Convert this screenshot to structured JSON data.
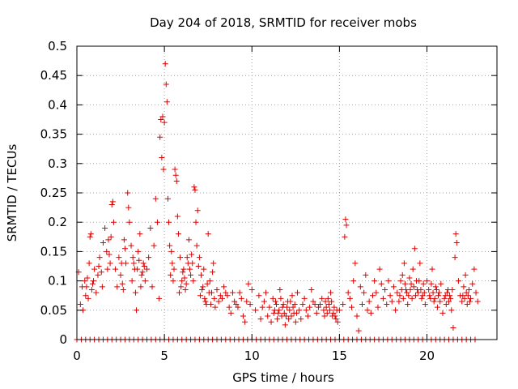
{
  "chart_data": {
    "type": "scatter",
    "title": "Day 204 of 2018, SRMTID for receiver mobs",
    "xlabel": "GPS time / hours",
    "ylabel": "SRMTID / TECUs",
    "xlim": [
      0,
      24
    ],
    "ylim": [
      0,
      0.5
    ],
    "grid": true,
    "marker": "+",
    "color": "#e00000",
    "x_ticks": [
      {
        "value": 0,
        "label": "0"
      },
      {
        "value": 5,
        "label": "5"
      },
      {
        "value": 10,
        "label": "10"
      },
      {
        "value": 15,
        "label": "15"
      },
      {
        "value": 20,
        "label": "20"
      }
    ],
    "y_ticks": [
      {
        "value": 0,
        "label": "0"
      },
      {
        "value": 0.05,
        "label": "0.05"
      },
      {
        "value": 0.1,
        "label": "0.1"
      },
      {
        "value": 0.15,
        "label": "0.15"
      },
      {
        "value": 0.2,
        "label": "0.2"
      },
      {
        "value": 0.25,
        "label": "0.25"
      },
      {
        "value": 0.3,
        "label": "0.3"
      },
      {
        "value": 0.35,
        "label": "0.35"
      },
      {
        "value": 0.4,
        "label": "0.4"
      },
      {
        "value": 0.45,
        "label": "0.45"
      },
      {
        "value": 0.5,
        "label": "0.5"
      }
    ],
    "points": [
      [
        0.1,
        0.115
      ],
      [
        0.2,
        0.06
      ],
      [
        0.3,
        0.09
      ],
      [
        0.35,
        0.05
      ],
      [
        0.45,
        0.1
      ],
      [
        0.5,
        0.075
      ],
      [
        0.6,
        0.105
      ],
      [
        0.7,
        0.13
      ],
      [
        0.75,
        0.175
      ],
      [
        0.8,
        0.18
      ],
      [
        0.9,
        0.095
      ],
      [
        1.0,
        0.12
      ],
      [
        1.1,
        0.08
      ],
      [
        1.2,
        0.11
      ],
      [
        1.3,
        0.14
      ],
      [
        1.4,
        0.115
      ],
      [
        1.5,
        0.165
      ],
      [
        1.6,
        0.19
      ],
      [
        1.7,
        0.15
      ],
      [
        1.8,
        0.17
      ],
      [
        1.9,
        0.13
      ],
      [
        2.0,
        0.23
      ],
      [
        2.05,
        0.235
      ],
      [
        2.1,
        0.2
      ],
      [
        2.2,
        0.12
      ],
      [
        2.3,
        0.09
      ],
      [
        2.4,
        0.14
      ],
      [
        2.5,
        0.11
      ],
      [
        2.6,
        0.095
      ],
      [
        2.7,
        0.17
      ],
      [
        2.8,
        0.13
      ],
      [
        2.9,
        0.25
      ],
      [
        2.95,
        0.225
      ],
      [
        3.0,
        0.2
      ],
      [
        3.1,
        0.16
      ],
      [
        3.2,
        0.14
      ],
      [
        3.3,
        0.12
      ],
      [
        3.35,
        0.08
      ],
      [
        3.4,
        0.05
      ],
      [
        3.5,
        0.15
      ],
      [
        3.6,
        0.18
      ],
      [
        3.7,
        0.11
      ],
      [
        3.8,
        0.13
      ],
      [
        3.9,
        0.1
      ],
      [
        4.0,
        0.12
      ],
      [
        4.1,
        0.14
      ],
      [
        4.2,
        0.19
      ],
      [
        4.3,
        0.09
      ],
      [
        4.4,
        0.16
      ],
      [
        4.5,
        0.24
      ],
      [
        4.6,
        0.2
      ],
      [
        4.7,
        0.07
      ],
      [
        4.75,
        0.345
      ],
      [
        4.8,
        0.375
      ],
      [
        4.85,
        0.31
      ],
      [
        4.9,
        0.38
      ],
      [
        4.95,
        0.29
      ],
      [
        5.0,
        0.37
      ],
      [
        5.05,
        0.47
      ],
      [
        5.1,
        0.435
      ],
      [
        5.15,
        0.405
      ],
      [
        5.2,
        0.24
      ],
      [
        5.25,
        0.2
      ],
      [
        5.3,
        0.16
      ],
      [
        5.35,
        0.11
      ],
      [
        5.4,
        0.15
      ],
      [
        5.5,
        0.1
      ],
      [
        5.6,
        0.29
      ],
      [
        5.65,
        0.28
      ],
      [
        5.7,
        0.27
      ],
      [
        5.75,
        0.21
      ],
      [
        5.8,
        0.18
      ],
      [
        5.9,
        0.14
      ],
      [
        6.0,
        0.1
      ],
      [
        6.1,
        0.12
      ],
      [
        6.2,
        0.085
      ],
      [
        6.3,
        0.14
      ],
      [
        6.4,
        0.17
      ],
      [
        6.5,
        0.11
      ],
      [
        6.6,
        0.13
      ],
      [
        6.7,
        0.26
      ],
      [
        6.75,
        0.255
      ],
      [
        6.8,
        0.2
      ],
      [
        6.9,
        0.22
      ],
      [
        7.0,
        0.14
      ],
      [
        7.1,
        0.11
      ],
      [
        7.2,
        0.09
      ],
      [
        7.3,
        0.07
      ],
      [
        7.4,
        0.06
      ],
      [
        7.5,
        0.18
      ],
      [
        7.6,
        0.1
      ],
      [
        7.7,
        0.08
      ],
      [
        7.8,
        0.13
      ],
      [
        7.9,
        0.055
      ],
      [
        8.0,
        0.085
      ],
      [
        8.1,
        0.065
      ],
      [
        8.2,
        0.075
      ],
      [
        8.3,
        0.07
      ],
      [
        8.4,
        0.09
      ],
      [
        8.5,
        0.08
      ],
      [
        8.6,
        0.075
      ],
      [
        8.7,
        0.055
      ],
      [
        8.8,
        0.045
      ],
      [
        8.9,
        0.08
      ],
      [
        9.0,
        0.065
      ],
      [
        9.1,
        0.06
      ],
      [
        9.2,
        0.055
      ],
      [
        9.3,
        0.08
      ],
      [
        9.4,
        0.07
      ],
      [
        9.5,
        0.04
      ],
      [
        9.6,
        0.03
      ],
      [
        9.7,
        0.065
      ],
      [
        9.8,
        0.095
      ],
      [
        9.9,
        0.06
      ],
      [
        10.0,
        0.085
      ],
      [
        10.2,
        0.05
      ],
      [
        10.4,
        0.075
      ],
      [
        10.5,
        0.035
      ],
      [
        10.6,
        0.055
      ],
      [
        10.7,
        0.065
      ],
      [
        10.8,
        0.08
      ],
      [
        10.9,
        0.04
      ],
      [
        11.0,
        0.055
      ],
      [
        11.1,
        0.03
      ],
      [
        11.2,
        0.07
      ],
      [
        11.3,
        0.05
      ],
      [
        11.4,
        0.06
      ],
      [
        11.5,
        0.045
      ],
      [
        11.6,
        0.085
      ],
      [
        11.7,
        0.04
      ],
      [
        11.8,
        0.06
      ],
      [
        11.9,
        0.025
      ],
      [
        12.0,
        0.055
      ],
      [
        12.1,
        0.035
      ],
      [
        12.2,
        0.065
      ],
      [
        12.3,
        0.075
      ],
      [
        12.4,
        0.045
      ],
      [
        12.5,
        0.03
      ],
      [
        12.6,
        0.08
      ],
      [
        12.7,
        0.05
      ],
      [
        12.8,
        0.035
      ],
      [
        12.9,
        0.06
      ],
      [
        13.0,
        0.07
      ],
      [
        13.2,
        0.04
      ],
      [
        13.4,
        0.085
      ],
      [
        13.6,
        0.06
      ],
      [
        13.8,
        0.055
      ],
      [
        14.0,
        0.07
      ],
      [
        14.1,
        0.05
      ],
      [
        14.2,
        0.065
      ],
      [
        14.3,
        0.045
      ],
      [
        14.4,
        0.06
      ],
      [
        14.5,
        0.08
      ],
      [
        14.6,
        0.04
      ],
      [
        14.7,
        0.055
      ],
      [
        14.8,
        0.035
      ],
      [
        14.9,
        0.03
      ],
      [
        15.0,
        0.05
      ],
      [
        15.2,
        0.06
      ],
      [
        15.3,
        0.175
      ],
      [
        15.35,
        0.205
      ],
      [
        15.4,
        0.195
      ],
      [
        15.5,
        0.08
      ],
      [
        15.6,
        0.07
      ],
      [
        15.7,
        0.055
      ],
      [
        15.8,
        0.1
      ],
      [
        15.9,
        0.13
      ],
      [
        16.0,
        0.04
      ],
      [
        16.1,
        0.015
      ],
      [
        16.2,
        0.09
      ],
      [
        16.3,
        0.06
      ],
      [
        16.4,
        0.08
      ],
      [
        16.5,
        0.11
      ],
      [
        16.6,
        0.05
      ],
      [
        16.7,
        0.065
      ],
      [
        16.8,
        0.045
      ],
      [
        16.9,
        0.075
      ],
      [
        17.0,
        0.1
      ],
      [
        17.1,
        0.08
      ],
      [
        17.2,
        0.055
      ],
      [
        17.3,
        0.12
      ],
      [
        17.4,
        0.095
      ],
      [
        17.5,
        0.07
      ],
      [
        17.6,
        0.085
      ],
      [
        17.7,
        0.06
      ],
      [
        17.8,
        0.1
      ],
      [
        17.9,
        0.075
      ],
      [
        18.0,
        0.065
      ],
      [
        18.1,
        0.09
      ],
      [
        18.2,
        0.05
      ],
      [
        18.3,
        0.08
      ],
      [
        18.4,
        0.065
      ],
      [
        18.5,
        0.1
      ],
      [
        18.6,
        0.11
      ],
      [
        18.7,
        0.13
      ],
      [
        18.8,
        0.085
      ],
      [
        18.9,
        0.06
      ],
      [
        19.0,
        0.105
      ],
      [
        19.1,
        0.095
      ],
      [
        19.2,
        0.12
      ],
      [
        19.3,
        0.155
      ],
      [
        19.4,
        0.1
      ],
      [
        19.5,
        0.08
      ],
      [
        19.6,
        0.13
      ],
      [
        19.7,
        0.07
      ],
      [
        19.8,
        0.095
      ],
      [
        19.9,
        0.06
      ],
      [
        20.0,
        0.1
      ],
      [
        20.1,
        0.085
      ],
      [
        20.2,
        0.07
      ],
      [
        20.3,
        0.12
      ],
      [
        20.4,
        0.065
      ],
      [
        20.5,
        0.09
      ],
      [
        20.6,
        0.055
      ],
      [
        20.7,
        0.08
      ],
      [
        20.8,
        0.095
      ],
      [
        20.9,
        0.045
      ],
      [
        21.0,
        0.07
      ],
      [
        21.1,
        0.06
      ],
      [
        21.2,
        0.085
      ],
      [
        21.3,
        0.075
      ],
      [
        21.4,
        0.05
      ],
      [
        21.5,
        0.02
      ],
      [
        21.6,
        0.14
      ],
      [
        21.65,
        0.18
      ],
      [
        21.7,
        0.165
      ],
      [
        21.8,
        0.1
      ],
      [
        21.9,
        0.075
      ],
      [
        22.0,
        0.065
      ],
      [
        22.1,
        0.09
      ],
      [
        22.2,
        0.11
      ],
      [
        22.3,
        0.06
      ],
      [
        22.4,
        0.085
      ],
      [
        22.5,
        0.07
      ],
      [
        22.6,
        0.095
      ],
      [
        22.7,
        0.12
      ],
      [
        22.8,
        0.08
      ],
      [
        22.9,
        0.065
      ],
      [
        3.15,
        0.1
      ],
      [
        3.25,
        0.13
      ],
      [
        3.45,
        0.12
      ],
      [
        3.55,
        0.135
      ],
      [
        3.65,
        0.09
      ],
      [
        3.75,
        0.115
      ],
      [
        3.85,
        0.125
      ],
      [
        2.55,
        0.13
      ],
      [
        2.65,
        0.085
      ],
      [
        2.75,
        0.155
      ],
      [
        1.75,
        0.12
      ],
      [
        1.85,
        0.145
      ],
      [
        1.95,
        0.175
      ],
      [
        1.45,
        0.09
      ],
      [
        1.25,
        0.125
      ],
      [
        0.95,
        0.1
      ],
      [
        0.85,
        0.085
      ],
      [
        0.65,
        0.07
      ],
      [
        0.55,
        0.09
      ],
      [
        5.45,
        0.13
      ],
      [
        5.55,
        0.12
      ],
      [
        5.85,
        0.08
      ],
      [
        5.95,
        0.09
      ],
      [
        6.05,
        0.115
      ],
      [
        6.15,
        0.105
      ],
      [
        6.25,
        0.095
      ],
      [
        6.35,
        0.13
      ],
      [
        6.45,
        0.12
      ],
      [
        6.55,
        0.145
      ],
      [
        6.65,
        0.1
      ],
      [
        6.85,
        0.16
      ],
      [
        6.95,
        0.125
      ],
      [
        7.05,
        0.075
      ],
      [
        7.15,
        0.085
      ],
      [
        7.25,
        0.12
      ],
      [
        7.35,
        0.065
      ],
      [
        7.45,
        0.095
      ],
      [
        7.55,
        0.08
      ],
      [
        7.65,
        0.06
      ],
      [
        7.75,
        0.115
      ],
      [
        7.85,
        0.07
      ],
      [
        11.25,
        0.045
      ],
      [
        11.35,
        0.065
      ],
      [
        11.45,
        0.035
      ],
      [
        11.55,
        0.05
      ],
      [
        11.65,
        0.07
      ],
      [
        11.75,
        0.055
      ],
      [
        11.85,
        0.045
      ],
      [
        11.95,
        0.04
      ],
      [
        12.05,
        0.065
      ],
      [
        12.15,
        0.05
      ],
      [
        12.25,
        0.04
      ],
      [
        12.35,
        0.055
      ],
      [
        12.45,
        0.06
      ],
      [
        12.55,
        0.045
      ],
      [
        13.1,
        0.05
      ],
      [
        13.3,
        0.055
      ],
      [
        13.5,
        0.065
      ],
      [
        13.7,
        0.045
      ],
      [
        13.9,
        0.06
      ],
      [
        14.15,
        0.04
      ],
      [
        14.25,
        0.055
      ],
      [
        14.35,
        0.07
      ],
      [
        14.45,
        0.05
      ],
      [
        14.55,
        0.065
      ],
      [
        14.65,
        0.045
      ],
      [
        14.75,
        0.04
      ],
      [
        14.85,
        0.05
      ],
      [
        18.45,
        0.075
      ],
      [
        18.55,
        0.085
      ],
      [
        18.65,
        0.07
      ],
      [
        18.75,
        0.095
      ],
      [
        18.85,
        0.08
      ],
      [
        18.95,
        0.075
      ],
      [
        19.05,
        0.085
      ],
      [
        19.15,
        0.07
      ],
      [
        19.25,
        0.09
      ],
      [
        19.35,
        0.075
      ],
      [
        19.45,
        0.085
      ],
      [
        19.55,
        0.1
      ],
      [
        19.65,
        0.085
      ],
      [
        19.75,
        0.075
      ],
      [
        19.85,
        0.08
      ],
      [
        20.15,
        0.075
      ],
      [
        20.25,
        0.095
      ],
      [
        20.35,
        0.08
      ],
      [
        20.45,
        0.07
      ],
      [
        20.55,
        0.085
      ],
      [
        20.65,
        0.075
      ],
      [
        20.75,
        0.065
      ],
      [
        21.05,
        0.075
      ],
      [
        21.15,
        0.08
      ],
      [
        21.25,
        0.065
      ],
      [
        21.35,
        0.07
      ],
      [
        21.45,
        0.085
      ],
      [
        22.05,
        0.075
      ],
      [
        22.15,
        0.07
      ],
      [
        22.25,
        0.08
      ],
      [
        22.35,
        0.075
      ],
      [
        22.45,
        0.065
      ]
    ],
    "baseline_points": [
      0,
      0.25,
      0.5,
      0.75,
      1.0,
      1.25,
      1.5,
      1.75,
      2.0,
      2.25,
      2.5,
      2.75,
      3.0,
      3.25,
      3.5,
      3.75,
      4.0,
      4.25,
      4.5,
      4.75,
      5.0,
      5.25,
      5.5,
      5.75,
      6.0,
      6.25,
      6.5,
      6.75,
      7.0,
      7.25,
      7.5,
      7.75,
      8.0,
      8.25,
      8.5,
      8.75,
      9.0,
      9.25,
      9.5,
      9.75,
      10.0,
      10.25,
      10.5,
      10.75,
      11.0,
      11.25,
      11.5,
      11.75,
      12.0,
      12.25,
      12.5,
      12.75,
      13.0,
      13.25,
      13.5,
      13.75,
      14.0,
      14.25,
      14.5,
      14.75,
      15.0,
      15.25,
      15.5,
      15.75,
      16.0,
      16.25,
      16.5,
      16.75,
      17.0,
      17.25,
      17.5,
      17.75,
      18.0,
      18.25,
      18.5,
      18.75,
      19.0,
      19.25,
      19.5,
      19.75,
      20.0,
      20.25,
      20.5,
      20.75,
      21.0,
      21.25,
      21.5,
      21.75,
      22.0,
      22.25,
      22.5,
      22.75
    ]
  }
}
